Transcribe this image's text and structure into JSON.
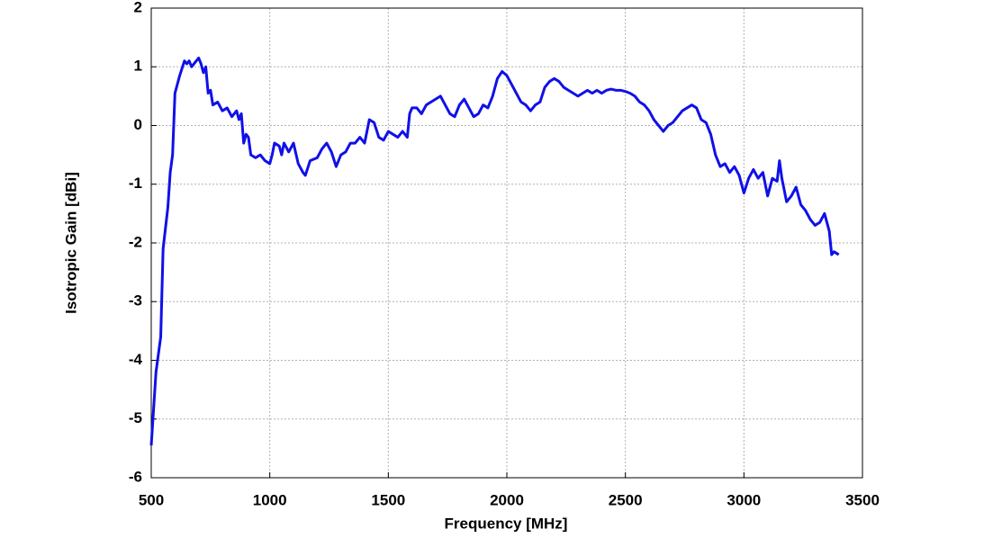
{
  "chart_data": {
    "type": "line",
    "xlabel": "Frequency [MHz]",
    "ylabel": "Isotropic Gain [dBi]",
    "xlim": [
      500,
      3500
    ],
    "xticks": [
      500,
      1000,
      1500,
      2000,
      2500,
      3000,
      3500
    ],
    "ylim": [
      -6,
      2
    ],
    "yticks": [
      -6,
      -5,
      -4,
      -3,
      -2,
      -1,
      0,
      1,
      2
    ],
    "grid": true,
    "series": [
      {
        "color": "#1010e8",
        "x": [
          500,
          520,
          540,
          550,
          570,
          580,
          590,
          600,
          620,
          640,
          650,
          660,
          670,
          690,
          700,
          710,
          720,
          730,
          740,
          750,
          760,
          780,
          800,
          820,
          840,
          860,
          870,
          880,
          890,
          900,
          910,
          920,
          940,
          960,
          980,
          1000,
          1010,
          1020,
          1040,
          1050,
          1060,
          1080,
          1100,
          1120,
          1140,
          1150,
          1170,
          1200,
          1220,
          1240,
          1260,
          1280,
          1300,
          1320,
          1340,
          1360,
          1380,
          1400,
          1420,
          1440,
          1460,
          1480,
          1500,
          1520,
          1540,
          1560,
          1580,
          1590,
          1600,
          1620,
          1640,
          1660,
          1680,
          1700,
          1720,
          1740,
          1760,
          1780,
          1800,
          1820,
          1840,
          1860,
          1880,
          1900,
          1920,
          1940,
          1960,
          1980,
          2000,
          2020,
          2040,
          2060,
          2080,
          2100,
          2120,
          2140,
          2160,
          2180,
          2200,
          2220,
          2240,
          2260,
          2280,
          2300,
          2320,
          2340,
          2360,
          2380,
          2400,
          2420,
          2440,
          2460,
          2480,
          2500,
          2520,
          2540,
          2560,
          2580,
          2600,
          2620,
          2640,
          2660,
          2680,
          2700,
          2720,
          2740,
          2760,
          2780,
          2800,
          2820,
          2840,
          2860,
          2880,
          2900,
          2920,
          2940,
          2960,
          2980,
          3000,
          3020,
          3040,
          3060,
          3080,
          3100,
          3120,
          3140,
          3150,
          3160,
          3180,
          3200,
          3220,
          3240,
          3260,
          3280,
          3300,
          3320,
          3340,
          3360,
          3370,
          3380,
          3400
        ],
        "values": [
          -5.45,
          -4.2,
          -3.6,
          -2.1,
          -1.4,
          -0.8,
          -0.5,
          0.55,
          0.85,
          1.1,
          1.05,
          1.1,
          1.0,
          1.1,
          1.15,
          1.05,
          0.9,
          1.0,
          0.55,
          0.6,
          0.35,
          0.4,
          0.25,
          0.3,
          0.15,
          0.25,
          0.1,
          0.2,
          -0.3,
          -0.15,
          -0.2,
          -0.5,
          -0.55,
          -0.5,
          -0.6,
          -0.65,
          -0.5,
          -0.3,
          -0.35,
          -0.5,
          -0.3,
          -0.45,
          -0.3,
          -0.65,
          -0.8,
          -0.85,
          -0.6,
          -0.55,
          -0.4,
          -0.3,
          -0.45,
          -0.7,
          -0.5,
          -0.45,
          -0.3,
          -0.3,
          -0.2,
          -0.3,
          0.1,
          0.05,
          -0.2,
          -0.25,
          -0.1,
          -0.15,
          -0.2,
          -0.1,
          -0.2,
          0.2,
          0.3,
          0.3,
          0.2,
          0.35,
          0.4,
          0.45,
          0.5,
          0.35,
          0.2,
          0.15,
          0.35,
          0.45,
          0.3,
          0.15,
          0.2,
          0.35,
          0.3,
          0.5,
          0.8,
          0.92,
          0.85,
          0.7,
          0.55,
          0.4,
          0.35,
          0.25,
          0.35,
          0.4,
          0.65,
          0.75,
          0.8,
          0.75,
          0.65,
          0.6,
          0.55,
          0.5,
          0.55,
          0.6,
          0.55,
          0.6,
          0.55,
          0.6,
          0.62,
          0.6,
          0.6,
          0.58,
          0.55,
          0.5,
          0.4,
          0.35,
          0.25,
          0.1,
          0.0,
          -0.1,
          0.0,
          0.05,
          0.15,
          0.25,
          0.3,
          0.35,
          0.3,
          0.1,
          0.05,
          -0.15,
          -0.5,
          -0.7,
          -0.65,
          -0.8,
          -0.7,
          -0.85,
          -1.15,
          -0.9,
          -0.75,
          -0.9,
          -0.8,
          -1.2,
          -0.9,
          -0.95,
          -0.6,
          -0.9,
          -1.3,
          -1.2,
          -1.05,
          -1.35,
          -1.45,
          -1.6,
          -1.7,
          -1.65,
          -1.5,
          -1.8,
          -2.2,
          -2.15,
          -2.2
        ]
      }
    ]
  }
}
